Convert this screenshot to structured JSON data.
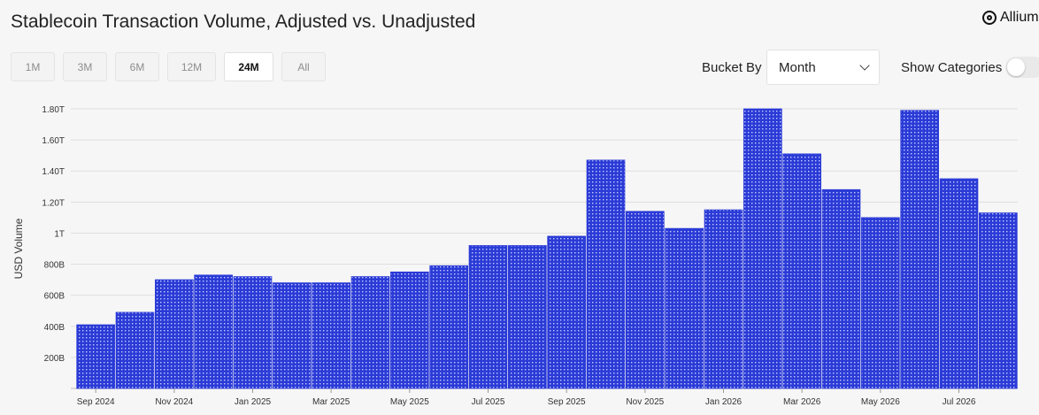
{
  "header": {
    "title": "Stablecoin Transaction Volume, Adjusted vs. Unadjusted",
    "brand": "Allium"
  },
  "range_buttons": [
    {
      "label": "1M",
      "active": false
    },
    {
      "label": "3M",
      "active": false
    },
    {
      "label": "6M",
      "active": false
    },
    {
      "label": "12M",
      "active": false
    },
    {
      "label": "24M",
      "active": true
    },
    {
      "label": "All",
      "active": false
    }
  ],
  "controls": {
    "bucket_label": "Bucket By",
    "bucket_value": "Month",
    "categories_label": "Show Categories",
    "categories_on": false
  },
  "colors": {
    "bar": "#2b3bd6",
    "bar_dot": "#c9ceff",
    "grid": "#dedede",
    "axis_text": "#333333"
  },
  "chart_data": {
    "type": "bar",
    "title": "Stablecoin Transaction Volume, Adjusted vs. Unadjusted",
    "ylabel": "USD Volume",
    "xlabel": "",
    "ylim": [
      0,
      1.8
    ],
    "y_unit": "T",
    "yticks": [
      {
        "value": 0.2,
        "label": "200B"
      },
      {
        "value": 0.4,
        "label": "400B"
      },
      {
        "value": 0.6,
        "label": "600B"
      },
      {
        "value": 0.8,
        "label": "800B"
      },
      {
        "value": 1.0,
        "label": "1T"
      },
      {
        "value": 1.2,
        "label": "1.20T"
      },
      {
        "value": 1.4,
        "label": "1.40T"
      },
      {
        "value": 1.6,
        "label": "1.60T"
      },
      {
        "value": 1.8,
        "label": "1.80T"
      }
    ],
    "grid": true,
    "categories": [
      "Sep 2024",
      "Oct 2024",
      "Nov 2024",
      "Dec 2024",
      "Jan 2025",
      "Feb 2025",
      "Mar 2025",
      "Apr 2025",
      "May 2025",
      "Jun 2025",
      "Jul 2025",
      "Aug 2025",
      "Sep 2025",
      "Oct 2025",
      "Nov 2025",
      "Dec 2025",
      "Jan 2026",
      "Feb 2026",
      "Mar 2026",
      "Apr 2026",
      "May 2026",
      "Jun 2026",
      "Jul 2026",
      "Aug 2026"
    ],
    "values": [
      0.41,
      0.49,
      0.7,
      0.73,
      0.72,
      0.68,
      0.68,
      0.72,
      0.75,
      0.79,
      0.92,
      0.92,
      0.98,
      1.47,
      1.14,
      1.03,
      1.15,
      1.8,
      1.51,
      1.28,
      1.1,
      1.79,
      1.35,
      1.13
    ],
    "xtick_labels": [
      "Sep 2024",
      "Nov 2024",
      "Jan 2025",
      "Mar 2025",
      "May 2025",
      "Jul 2025",
      "Sep 2025",
      "Nov 2025",
      "Jan 2026",
      "Mar 2026",
      "May 2026",
      "Jul 2026"
    ]
  }
}
